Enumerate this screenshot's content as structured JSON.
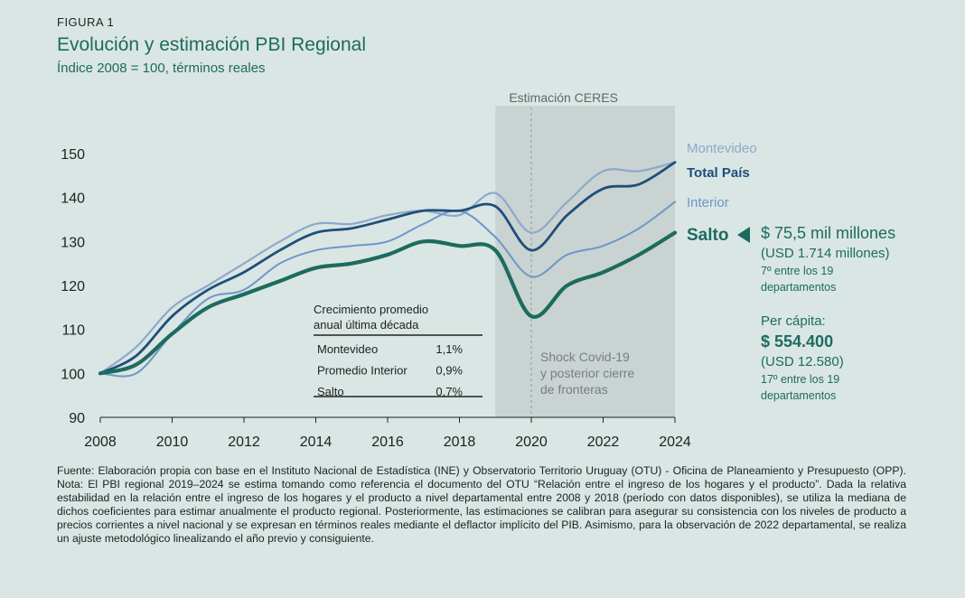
{
  "figure_label": "FIGURA 1",
  "title": "Evolución y estimación PBI Regional",
  "subtitle": "Índice 2008 = 100, términos reales",
  "colors": {
    "montevideo": "#8fa8c9",
    "total": "#1f4e79",
    "interior": "#6f96c8",
    "salto": "#1d6b5e",
    "band": "#c8d3d2",
    "text": "#1d6b5e"
  },
  "chart_data": {
    "type": "line",
    "title": "",
    "xlabel": "",
    "ylabel": "",
    "x": [
      2008,
      2009,
      2010,
      2011,
      2012,
      2013,
      2014,
      2015,
      2016,
      2017,
      2018,
      2019,
      2020,
      2021,
      2022,
      2023,
      2024
    ],
    "xlim": [
      2008,
      2024
    ],
    "ylim": [
      90,
      150
    ],
    "x_ticks": [
      "2008",
      "2010",
      "2012",
      "2014",
      "2016",
      "2018",
      "2020",
      "2022",
      "2024"
    ],
    "y_ticks": [
      "90",
      "100",
      "110",
      "120",
      "130",
      "140",
      "150"
    ],
    "series": [
      {
        "name": "Montevideo",
        "values": [
          100,
          106,
          115,
          120,
          125,
          130,
          134,
          134,
          136,
          137,
          136,
          141,
          132,
          139,
          146,
          146,
          148
        ]
      },
      {
        "name": "Total País",
        "values": [
          100,
          104,
          113,
          119,
          123,
          128,
          132,
          133,
          135,
          137,
          137,
          138,
          128,
          136,
          142,
          143,
          148
        ]
      },
      {
        "name": "Interior",
        "values": [
          100,
          100,
          109,
          117,
          119,
          125,
          128,
          129,
          130,
          134,
          137,
          131,
          122,
          127,
          129,
          133,
          139
        ]
      },
      {
        "name": "Salto",
        "values": [
          100,
          102,
          109,
          115,
          118,
          121,
          124,
          125,
          127,
          130,
          129,
          128,
          113,
          120,
          123,
          127,
          132
        ]
      }
    ],
    "band": {
      "label": "Estimación CERES",
      "from": 2019,
      "to": 2024
    },
    "dashed_line_x": 2020,
    "band_note": [
      "Shock Covid-19",
      "y posterior cierre",
      "de fronteras"
    ],
    "inset_table": {
      "title": [
        "Crecimiento promedio",
        "anual última década"
      ],
      "rows": [
        {
          "label": "Montevideo",
          "value": "1,1%"
        },
        {
          "label": "Promedio Interior",
          "value": "0,9%"
        },
        {
          "label": "Salto",
          "value": "0,7%"
        }
      ]
    }
  },
  "side_panel": {
    "amount": "$ 75,5 mil millones",
    "usd": "(USD 1.714 millones)",
    "rank1": "7º entre los 19",
    "rank1b": "departamentos",
    "per_capita_label": "Per cápita:",
    "per_capita_value": "$ 554.400",
    "per_capita_usd": "(USD 12.580)",
    "rank2": "17º entre los 19",
    "rank2b": "departamentos"
  },
  "source": "Fuente: Elaboración propia con base en el Instituto Nacional de Estadística (INE) y Observatorio Territorio Uruguay (OTU) - Oficina de Planeamiento y Presupuesto (OPP). Nota: El PBI regional 2019–2024 se estima tomando como referencia el documento del OTU “Relación entre el ingreso de los hogares y el producto”. Dada la relativa estabilidad en la relación entre el ingreso de los hogares y el producto a nivel departamental entre 2008 y 2018 (período con datos disponibles), se utiliza la mediana de dichos coeficientes para estimar anualmente el producto regional. Posteriormente, las estimaciones se calibran para asegurar su consistencia con los niveles de producto a precios corrientes a nivel nacional y se expresan en términos reales mediante el deflactor implícito del PIB. Asimismo, para la observación de 2022 departamental, se realiza un ajuste metodológico linealizando el año previo y consiguiente."
}
